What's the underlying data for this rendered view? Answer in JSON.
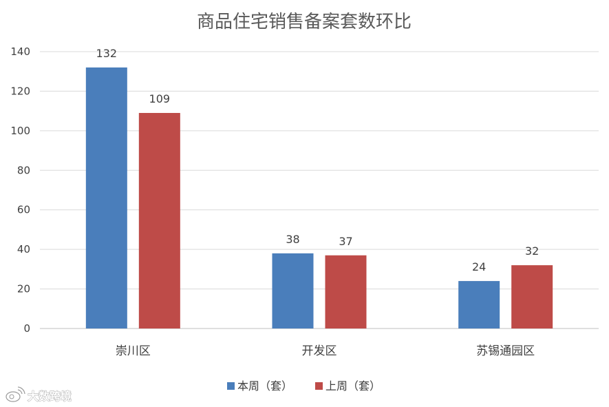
{
  "chart_data": {
    "type": "bar",
    "title": "商品住宅销售备案套数环比",
    "xlabel": "",
    "ylabel": "",
    "categories": [
      "崇川区",
      "开发区",
      "苏锡通园区"
    ],
    "series": [
      {
        "name": "本周（套）",
        "values": [
          132,
          38,
          24
        ],
        "color": "#4a7ebb"
      },
      {
        "name": "上周（套）",
        "values": [
          109,
          37,
          32
        ],
        "color": "#be4b48"
      }
    ],
    "ylim": [
      0,
      140
    ],
    "yticks": [
      0,
      20,
      40,
      60,
      80,
      100,
      120,
      140
    ],
    "grid": true,
    "legend": "bottom",
    "data_labels": true
  },
  "watermark": {
    "text": "大数跨境",
    "icon": "weibo-logo-icon"
  }
}
